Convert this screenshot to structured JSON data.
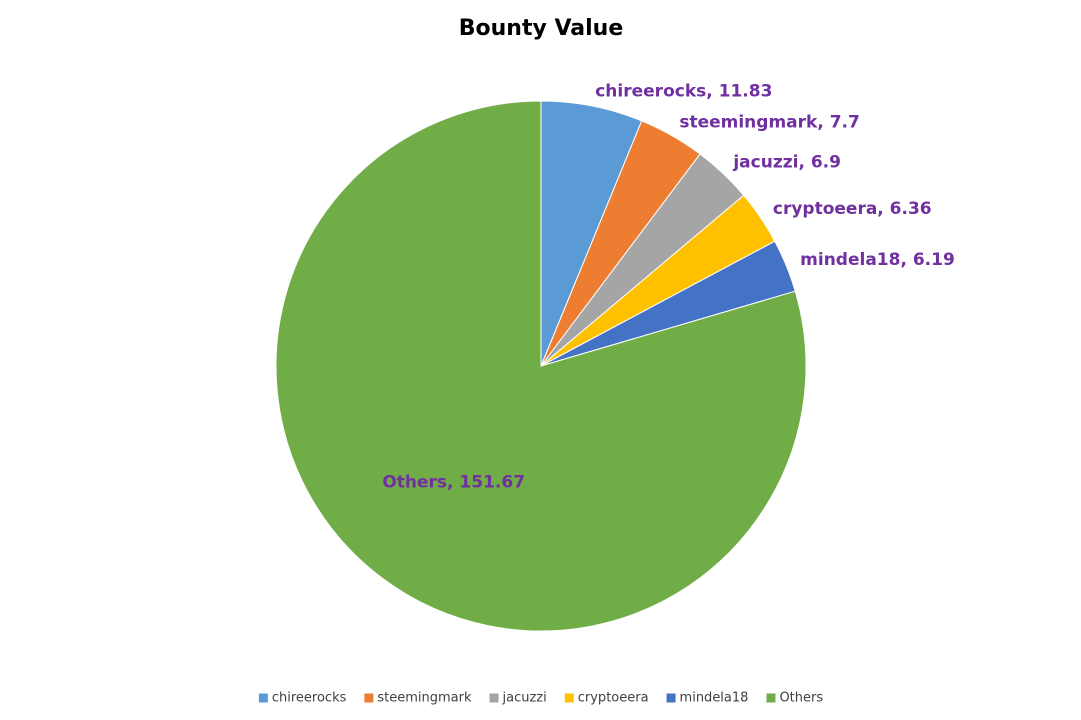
{
  "chart_data": {
    "type": "pie",
    "title": "Bounty Value",
    "categories": [
      "chireerocks",
      "steemingmark",
      "jacuzzi",
      "cryptoeera",
      "mindela18",
      "Others"
    ],
    "values": [
      11.83,
      7.7,
      6.9,
      6.36,
      6.19,
      151.67
    ],
    "value_labels": [
      "chireerocks, 11.83",
      "steemingmark, 7.7",
      "jacuzzi, 6.9",
      "cryptoeera, 6.36",
      "mindela18, 6.19",
      "Others, 151.67"
    ],
    "colors": [
      "#5b9bd5",
      "#ed7d31",
      "#a5a5a5",
      "#ffc000",
      "#4472c4",
      "#70ad47"
    ],
    "legend": "bottom"
  }
}
